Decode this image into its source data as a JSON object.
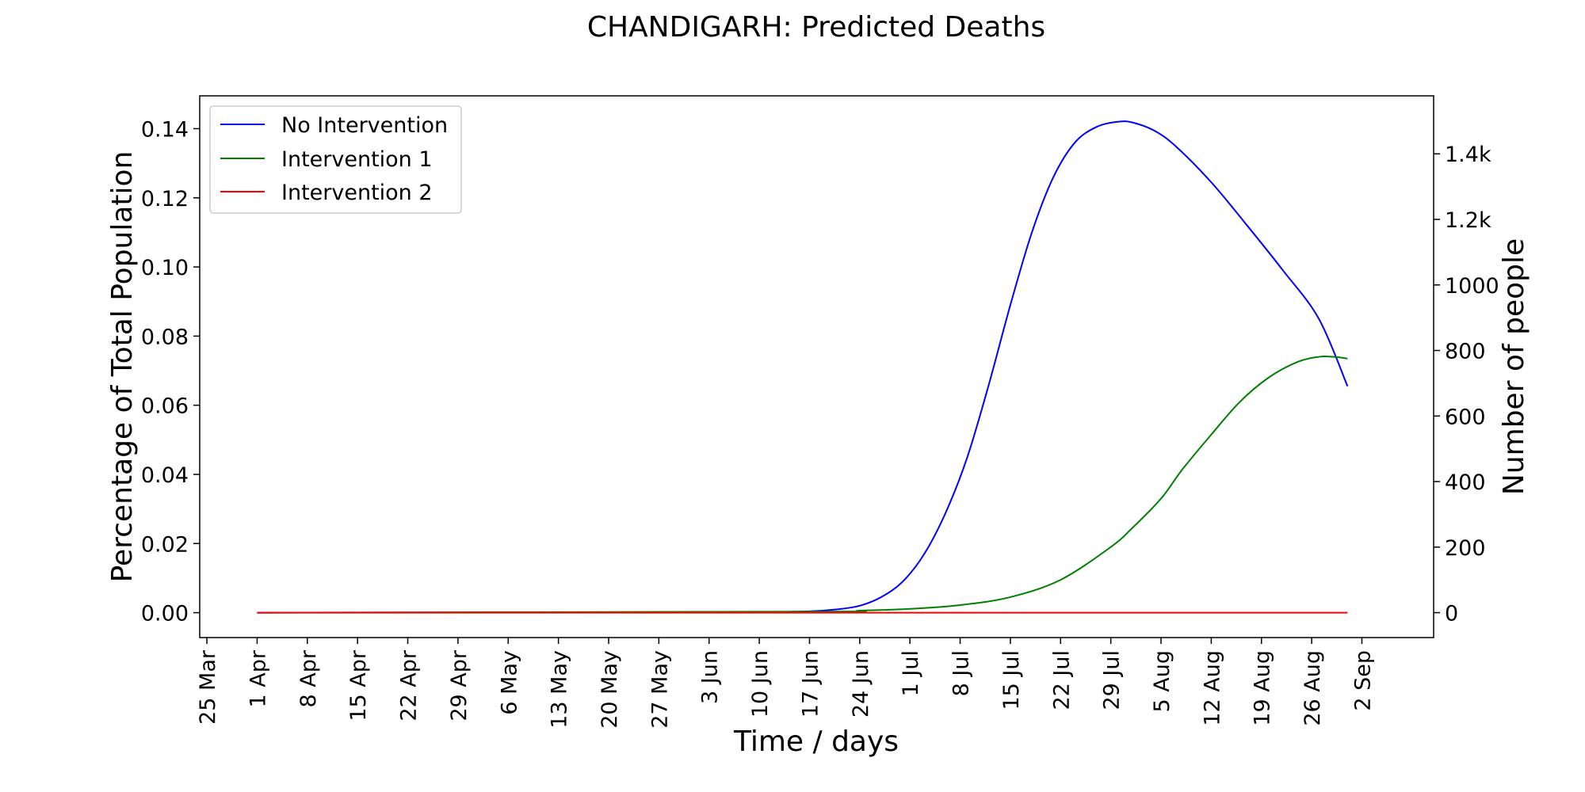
{
  "chart_data": {
    "type": "line",
    "title": "CHANDIGARH: Predicted Deaths",
    "xlabel": "Time / days",
    "ylabel": "Percentage of Total Population",
    "y2label": "Number of people",
    "x_start": "2020-03-25",
    "x_ticks": [
      "25 Mar",
      "1 Apr",
      "8 Apr",
      "15 Apr",
      "22 Apr",
      "29 Apr",
      "6 May",
      "13 May",
      "20 May",
      "27 May",
      "3 Jun",
      "10 Jun",
      "17 Jun",
      "24 Jun",
      "1 Jul",
      "8 Jul",
      "15 Jul",
      "22 Jul",
      "29 Jul",
      "5 Aug",
      "12 Aug",
      "19 Aug",
      "26 Aug",
      "2 Sep"
    ],
    "xlim": [
      "2020-03-24",
      "2020-09-12"
    ],
    "ylim": [
      -0.0072,
      0.1495
    ],
    "yticks": [
      "0.00",
      "0.02",
      "0.04",
      "0.06",
      "0.08",
      "0.10",
      "0.12",
      "0.14"
    ],
    "y2lim": [
      -76,
      1577
    ],
    "y2ticks": [
      "0",
      "200",
      "400",
      "600",
      "800",
      "1000",
      "1.2k",
      "1.4k"
    ],
    "grid": false,
    "legend_position": "top-left",
    "series": [
      {
        "name": "No Intervention",
        "color": "#0000ff",
        "x": [
          "2020-04-01",
          "2020-05-20",
          "2020-06-10",
          "2020-06-17",
          "2020-06-21",
          "2020-06-24",
          "2020-06-27",
          "2020-06-30",
          "2020-07-03",
          "2020-07-06",
          "2020-07-09",
          "2020-07-12",
          "2020-07-15",
          "2020-07-18",
          "2020-07-21",
          "2020-07-24",
          "2020-07-27",
          "2020-07-30",
          "2020-08-01",
          "2020-08-04",
          "2020-08-07",
          "2020-08-12",
          "2020-08-17",
          "2020-08-22",
          "2020-08-27",
          "2020-08-31"
        ],
        "y": [
          0.0,
          0.0001,
          0.0002,
          0.0004,
          0.001,
          0.002,
          0.0045,
          0.009,
          0.017,
          0.029,
          0.045,
          0.066,
          0.089,
          0.11,
          0.126,
          0.136,
          0.1405,
          0.142,
          0.1418,
          0.1395,
          0.135,
          0.1245,
          0.112,
          0.099,
          0.085,
          0.0655
        ]
      },
      {
        "name": "Intervention 1",
        "color": "#008000",
        "x": [
          "2020-04-01",
          "2020-06-17",
          "2020-06-24",
          "2020-07-01",
          "2020-07-08",
          "2020-07-15",
          "2020-07-22",
          "2020-07-29",
          "2020-08-01",
          "2020-08-05",
          "2020-08-08",
          "2020-08-12",
          "2020-08-16",
          "2020-08-20",
          "2020-08-24",
          "2020-08-27",
          "2020-08-29",
          "2020-08-31"
        ],
        "y": [
          0.0,
          0.0003,
          0.0006,
          0.0011,
          0.0022,
          0.0045,
          0.0095,
          0.019,
          0.0245,
          0.033,
          0.0415,
          0.0515,
          0.061,
          0.068,
          0.0725,
          0.074,
          0.074,
          0.0735
        ]
      },
      {
        "name": "Intervention 2",
        "color": "#ff0000",
        "x": [
          "2020-04-01",
          "2020-08-31"
        ],
        "y": [
          0.0,
          0.0
        ]
      }
    ]
  }
}
